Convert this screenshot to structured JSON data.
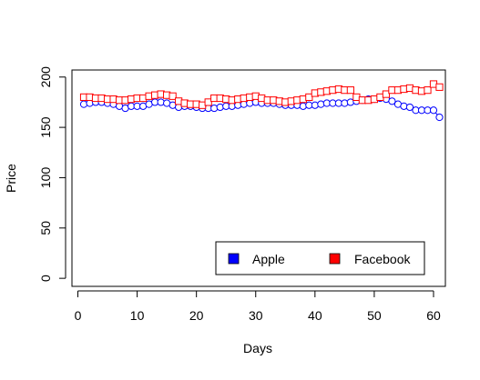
{
  "chart_data": {
    "type": "line",
    "title": "",
    "xlabel": "Days",
    "ylabel": "Price",
    "xlim": [
      -1,
      62
    ],
    "ylim": [
      -8,
      207
    ],
    "x_ticks": [
      0,
      10,
      20,
      30,
      40,
      50,
      60
    ],
    "y_ticks": [
      0,
      50,
      100,
      150,
      200
    ],
    "grid": false,
    "legend_position": "bottom-right",
    "x": [
      1,
      2,
      3,
      4,
      5,
      6,
      7,
      8,
      9,
      10,
      11,
      12,
      13,
      14,
      15,
      16,
      17,
      18,
      19,
      20,
      21,
      22,
      23,
      24,
      25,
      26,
      27,
      28,
      29,
      30,
      31,
      32,
      33,
      34,
      35,
      36,
      37,
      38,
      39,
      40,
      41,
      42,
      43,
      44,
      45,
      46,
      47,
      48,
      49,
      50,
      51,
      52,
      53,
      54,
      55,
      56,
      57,
      58,
      59,
      60,
      61
    ],
    "series": [
      {
        "name": "Apple",
        "color": "#0000FF",
        "marker": "circle",
        "values": [
          173,
          174,
          175,
          175,
          174,
          173,
          171,
          169,
          171,
          171,
          171,
          173,
          175,
          175,
          174,
          172,
          170,
          171,
          171,
          170,
          169,
          169,
          169,
          170,
          171,
          171,
          172,
          173,
          174,
          175,
          174,
          174,
          174,
          173,
          172,
          172,
          172,
          171,
          172,
          172,
          173,
          174,
          174,
          174,
          174,
          175,
          176,
          177,
          178,
          178,
          179,
          178,
          176,
          173,
          171,
          170,
          167,
          167,
          167,
          167,
          160
        ]
      },
      {
        "name": "Facebook",
        "color": "#FF0000",
        "marker": "square",
        "values": [
          180,
          180,
          179,
          179,
          178,
          178,
          177,
          177,
          178,
          179,
          179,
          181,
          182,
          183,
          182,
          181,
          176,
          174,
          173,
          173,
          172,
          175,
          179,
          179,
          178,
          177,
          178,
          179,
          180,
          181,
          179,
          177,
          177,
          176,
          175,
          176,
          177,
          178,
          180,
          184,
          185,
          186,
          187,
          188,
          187,
          187,
          180,
          177,
          177,
          178,
          180,
          183,
          187,
          187,
          188,
          189,
          187,
          186,
          187,
          193,
          190
        ]
      }
    ]
  },
  "legend": {
    "items": [
      {
        "label": "Apple",
        "color": "#0000FF"
      },
      {
        "label": "Facebook",
        "color": "#FF0000"
      }
    ]
  }
}
